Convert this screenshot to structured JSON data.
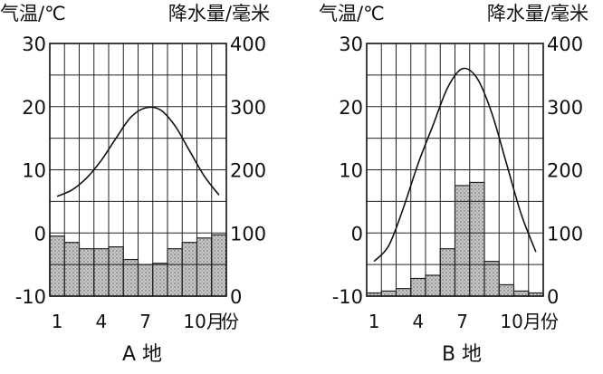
{
  "chart_data": [
    {
      "type": "bar+line",
      "title": "A 地",
      "left_axis_label": "气温/℃",
      "right_axis_label": "降水量/毫米",
      "x_axis_unit": "月份",
      "x_tick_labels": [
        "1",
        "4",
        "7",
        "10月"
      ],
      "x_tick_months": [
        1,
        4,
        7,
        10
      ],
      "y_left_ticks": [
        "-10",
        "0",
        "10",
        "20",
        "30"
      ],
      "y_left_range": [
        -10,
        30
      ],
      "y_right_ticks": [
        "0",
        "100",
        "200",
        "300",
        "400"
      ],
      "y_right_range": [
        0,
        400
      ],
      "grid": true,
      "months": [
        1,
        2,
        3,
        4,
        5,
        6,
        7,
        8,
        9,
        10,
        11,
        12
      ],
      "series": [
        {
          "type": "line",
          "axis": "left",
          "values": [
            5.8,
            6.8,
            8.7,
            11.5,
            15,
            18.3,
            19.8,
            19.5,
            17,
            13,
            9,
            6
          ]
        },
        {
          "type": "bar",
          "axis": "right",
          "values": [
            95,
            85,
            75,
            75,
            78,
            58,
            50,
            52,
            75,
            85,
            92,
            97
          ]
        }
      ]
    },
    {
      "type": "bar+line",
      "title": "B 地",
      "left_axis_label": "气温/℃",
      "right_axis_label": "降水量/毫米",
      "x_axis_unit": "月份",
      "x_tick_labels": [
        "1",
        "4",
        "7",
        "10月"
      ],
      "x_tick_months": [
        1,
        4,
        7,
        10
      ],
      "y_left_ticks": [
        "-10",
        "0",
        "10",
        "20",
        "30"
      ],
      "y_left_range": [
        -10,
        30
      ],
      "y_right_ticks": [
        "0",
        "100",
        "200",
        "300",
        "400"
      ],
      "y_right_range": [
        0,
        400
      ],
      "grid": true,
      "months": [
        1,
        2,
        3,
        4,
        5,
        6,
        7,
        8,
        9,
        10,
        11,
        12
      ],
      "series": [
        {
          "type": "line",
          "axis": "left",
          "values": [
            -4.5,
            -2,
            4,
            11,
            17,
            23,
            26,
            24.5,
            19,
            11,
            3,
            -3
          ]
        },
        {
          "type": "bar",
          "axis": "right",
          "values": [
            5,
            8,
            12,
            28,
            33,
            75,
            175,
            180,
            55,
            18,
            8,
            5
          ]
        }
      ]
    }
  ]
}
